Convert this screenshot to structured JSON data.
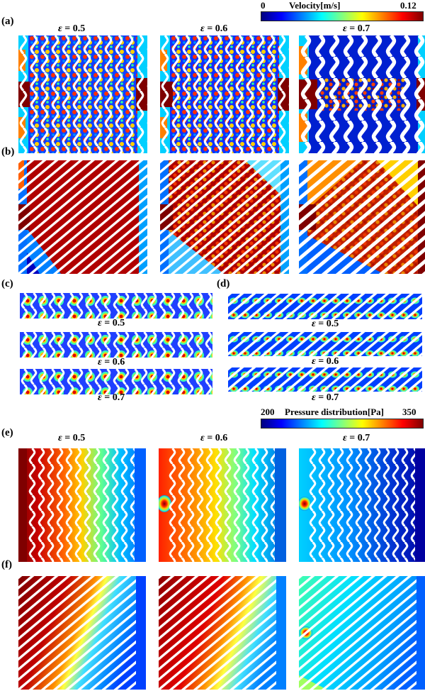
{
  "colorbars": {
    "velocity": {
      "min": "0",
      "max": "0.12",
      "title": "Velocity[m/s]"
    },
    "pressure": {
      "min": "200",
      "max": "350",
      "title": "Pressure distribution[Pa]"
    }
  },
  "panel_labels": {
    "a": "(a)",
    "b": "(b)",
    "c": "(c)",
    "d": "(d)",
    "e": "(e)",
    "f": "(f)"
  },
  "eps": {
    "symbol": "ε",
    "v1": "= 0.5",
    "v2": "= 0.6",
    "v3": "= 0.7"
  },
  "colors": {
    "deep_blue": "#00007f",
    "cyan": "#00ffff",
    "yellow": "#ffff00",
    "dark_red": "#7f0000"
  }
}
